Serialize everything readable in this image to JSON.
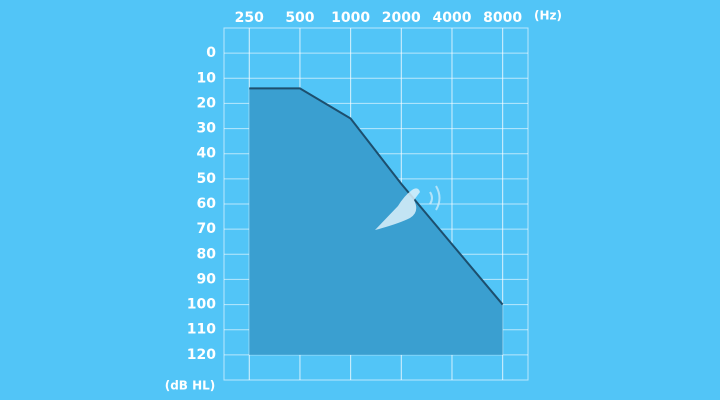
{
  "chart_data": {
    "type": "area",
    "x": [
      250,
      500,
      1000,
      2000,
      4000,
      8000
    ],
    "series": [
      {
        "color": "#1d4f6e",
        "fill": "#3a9fd0",
        "values": [
          14,
          14,
          26,
          52,
          76,
          100
        ]
      }
    ],
    "xlim": [
      177,
      11314
    ],
    "xscale": "log",
    "xticks": [
      250,
      500,
      1000,
      2000,
      4000,
      8000
    ],
    "ylim": [
      -10,
      130
    ],
    "y_inverted": true,
    "yticks": [
      0,
      10,
      20,
      30,
      40,
      50,
      60,
      70,
      80,
      90,
      100,
      110,
      120
    ],
    "x_unit": "(Hz)",
    "y_unit": "(dB HL)",
    "grid": true
  }
}
